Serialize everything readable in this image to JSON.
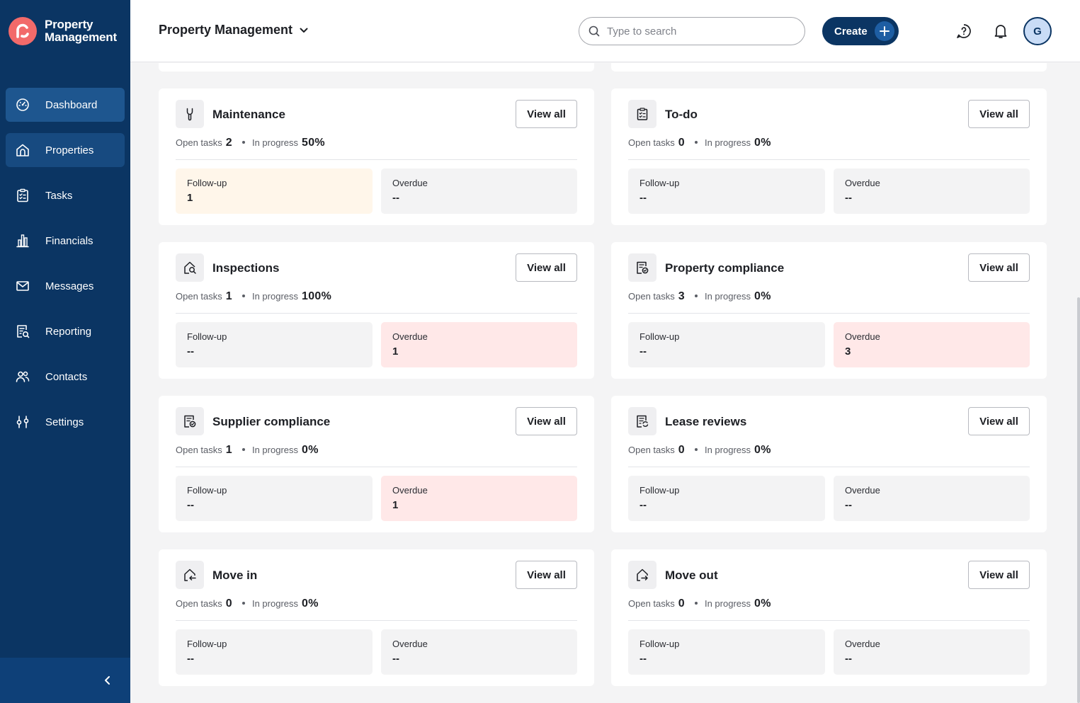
{
  "brand": {
    "line1": "Property",
    "line2": "Management"
  },
  "sidebar": {
    "items": [
      {
        "label": "Dashboard",
        "icon": "dashboard-icon",
        "state": "active"
      },
      {
        "label": "Properties",
        "icon": "home-icon",
        "state": "selected"
      },
      {
        "label": "Tasks",
        "icon": "clipboard-icon",
        "state": ""
      },
      {
        "label": "Financials",
        "icon": "bar-chart-icon",
        "state": ""
      },
      {
        "label": "Messages",
        "icon": "mail-icon",
        "state": ""
      },
      {
        "label": "Reporting",
        "icon": "report-search-icon",
        "state": ""
      },
      {
        "label": "Contacts",
        "icon": "users-icon",
        "state": ""
      },
      {
        "label": "Settings",
        "icon": "sliders-icon",
        "state": ""
      }
    ]
  },
  "header": {
    "title": "Property Management",
    "search_placeholder": "Type to search",
    "create_label": "Create",
    "avatar_initial": "G"
  },
  "cards": [
    {
      "title": "Maintenance",
      "icon": "wrench-icon",
      "view_label": "View all",
      "open_label": "Open tasks",
      "open": "2",
      "progress_label": "In progress",
      "progress": "50%",
      "followup_label": "Follow-up",
      "followup": "1",
      "followup_tone": "warn",
      "overdue_label": "Overdue",
      "overdue": "--",
      "overdue_tone": ""
    },
    {
      "title": "To-do",
      "icon": "checklist-icon",
      "view_label": "View all",
      "open_label": "Open tasks",
      "open": "0",
      "progress_label": "In progress",
      "progress": "0%",
      "followup_label": "Follow-up",
      "followup": "--",
      "followup_tone": "",
      "overdue_label": "Overdue",
      "overdue": "--",
      "overdue_tone": ""
    },
    {
      "title": "Inspections",
      "icon": "house-search-icon",
      "view_label": "View all",
      "open_label": "Open tasks",
      "open": "1",
      "progress_label": "In progress",
      "progress": "100%",
      "followup_label": "Follow-up",
      "followup": "--",
      "followup_tone": "",
      "overdue_label": "Overdue",
      "overdue": "1",
      "overdue_tone": "danger"
    },
    {
      "title": "Property compliance",
      "icon": "compliance-icon",
      "view_label": "View all",
      "open_label": "Open tasks",
      "open": "3",
      "progress_label": "In progress",
      "progress": "0%",
      "followup_label": "Follow-up",
      "followup": "--",
      "followup_tone": "",
      "overdue_label": "Overdue",
      "overdue": "3",
      "overdue_tone": "danger"
    },
    {
      "title": "Supplier compliance",
      "icon": "compliance-icon",
      "view_label": "View all",
      "open_label": "Open tasks",
      "open": "1",
      "progress_label": "In progress",
      "progress": "0%",
      "followup_label": "Follow-up",
      "followup": "--",
      "followup_tone": "",
      "overdue_label": "Overdue",
      "overdue": "1",
      "overdue_tone": "danger"
    },
    {
      "title": "Lease reviews",
      "icon": "lease-review-icon",
      "view_label": "View all",
      "open_label": "Open tasks",
      "open": "0",
      "progress_label": "In progress",
      "progress": "0%",
      "followup_label": "Follow-up",
      "followup": "--",
      "followup_tone": "",
      "overdue_label": "Overdue",
      "overdue": "--",
      "overdue_tone": ""
    },
    {
      "title": "Move in",
      "icon": "move-in-icon",
      "view_label": "View all",
      "open_label": "Open tasks",
      "open": "0",
      "progress_label": "In progress",
      "progress": "0%",
      "followup_label": "Follow-up",
      "followup": "--",
      "followup_tone": "",
      "overdue_label": "Overdue",
      "overdue": "--",
      "overdue_tone": ""
    },
    {
      "title": "Move out",
      "icon": "move-out-icon",
      "view_label": "View all",
      "open_label": "Open tasks",
      "open": "0",
      "progress_label": "In progress",
      "progress": "0%",
      "followup_label": "Follow-up",
      "followup": "--",
      "followup_tone": "",
      "overdue_label": "Overdue",
      "overdue": "--",
      "overdue_tone": ""
    }
  ],
  "colors": {
    "sidebar": "#0b3563",
    "active": "#1e568f",
    "brand_mark": "#f26a6a",
    "warn_bg": "#fff6ea",
    "danger_bg": "#ffe8e8"
  }
}
